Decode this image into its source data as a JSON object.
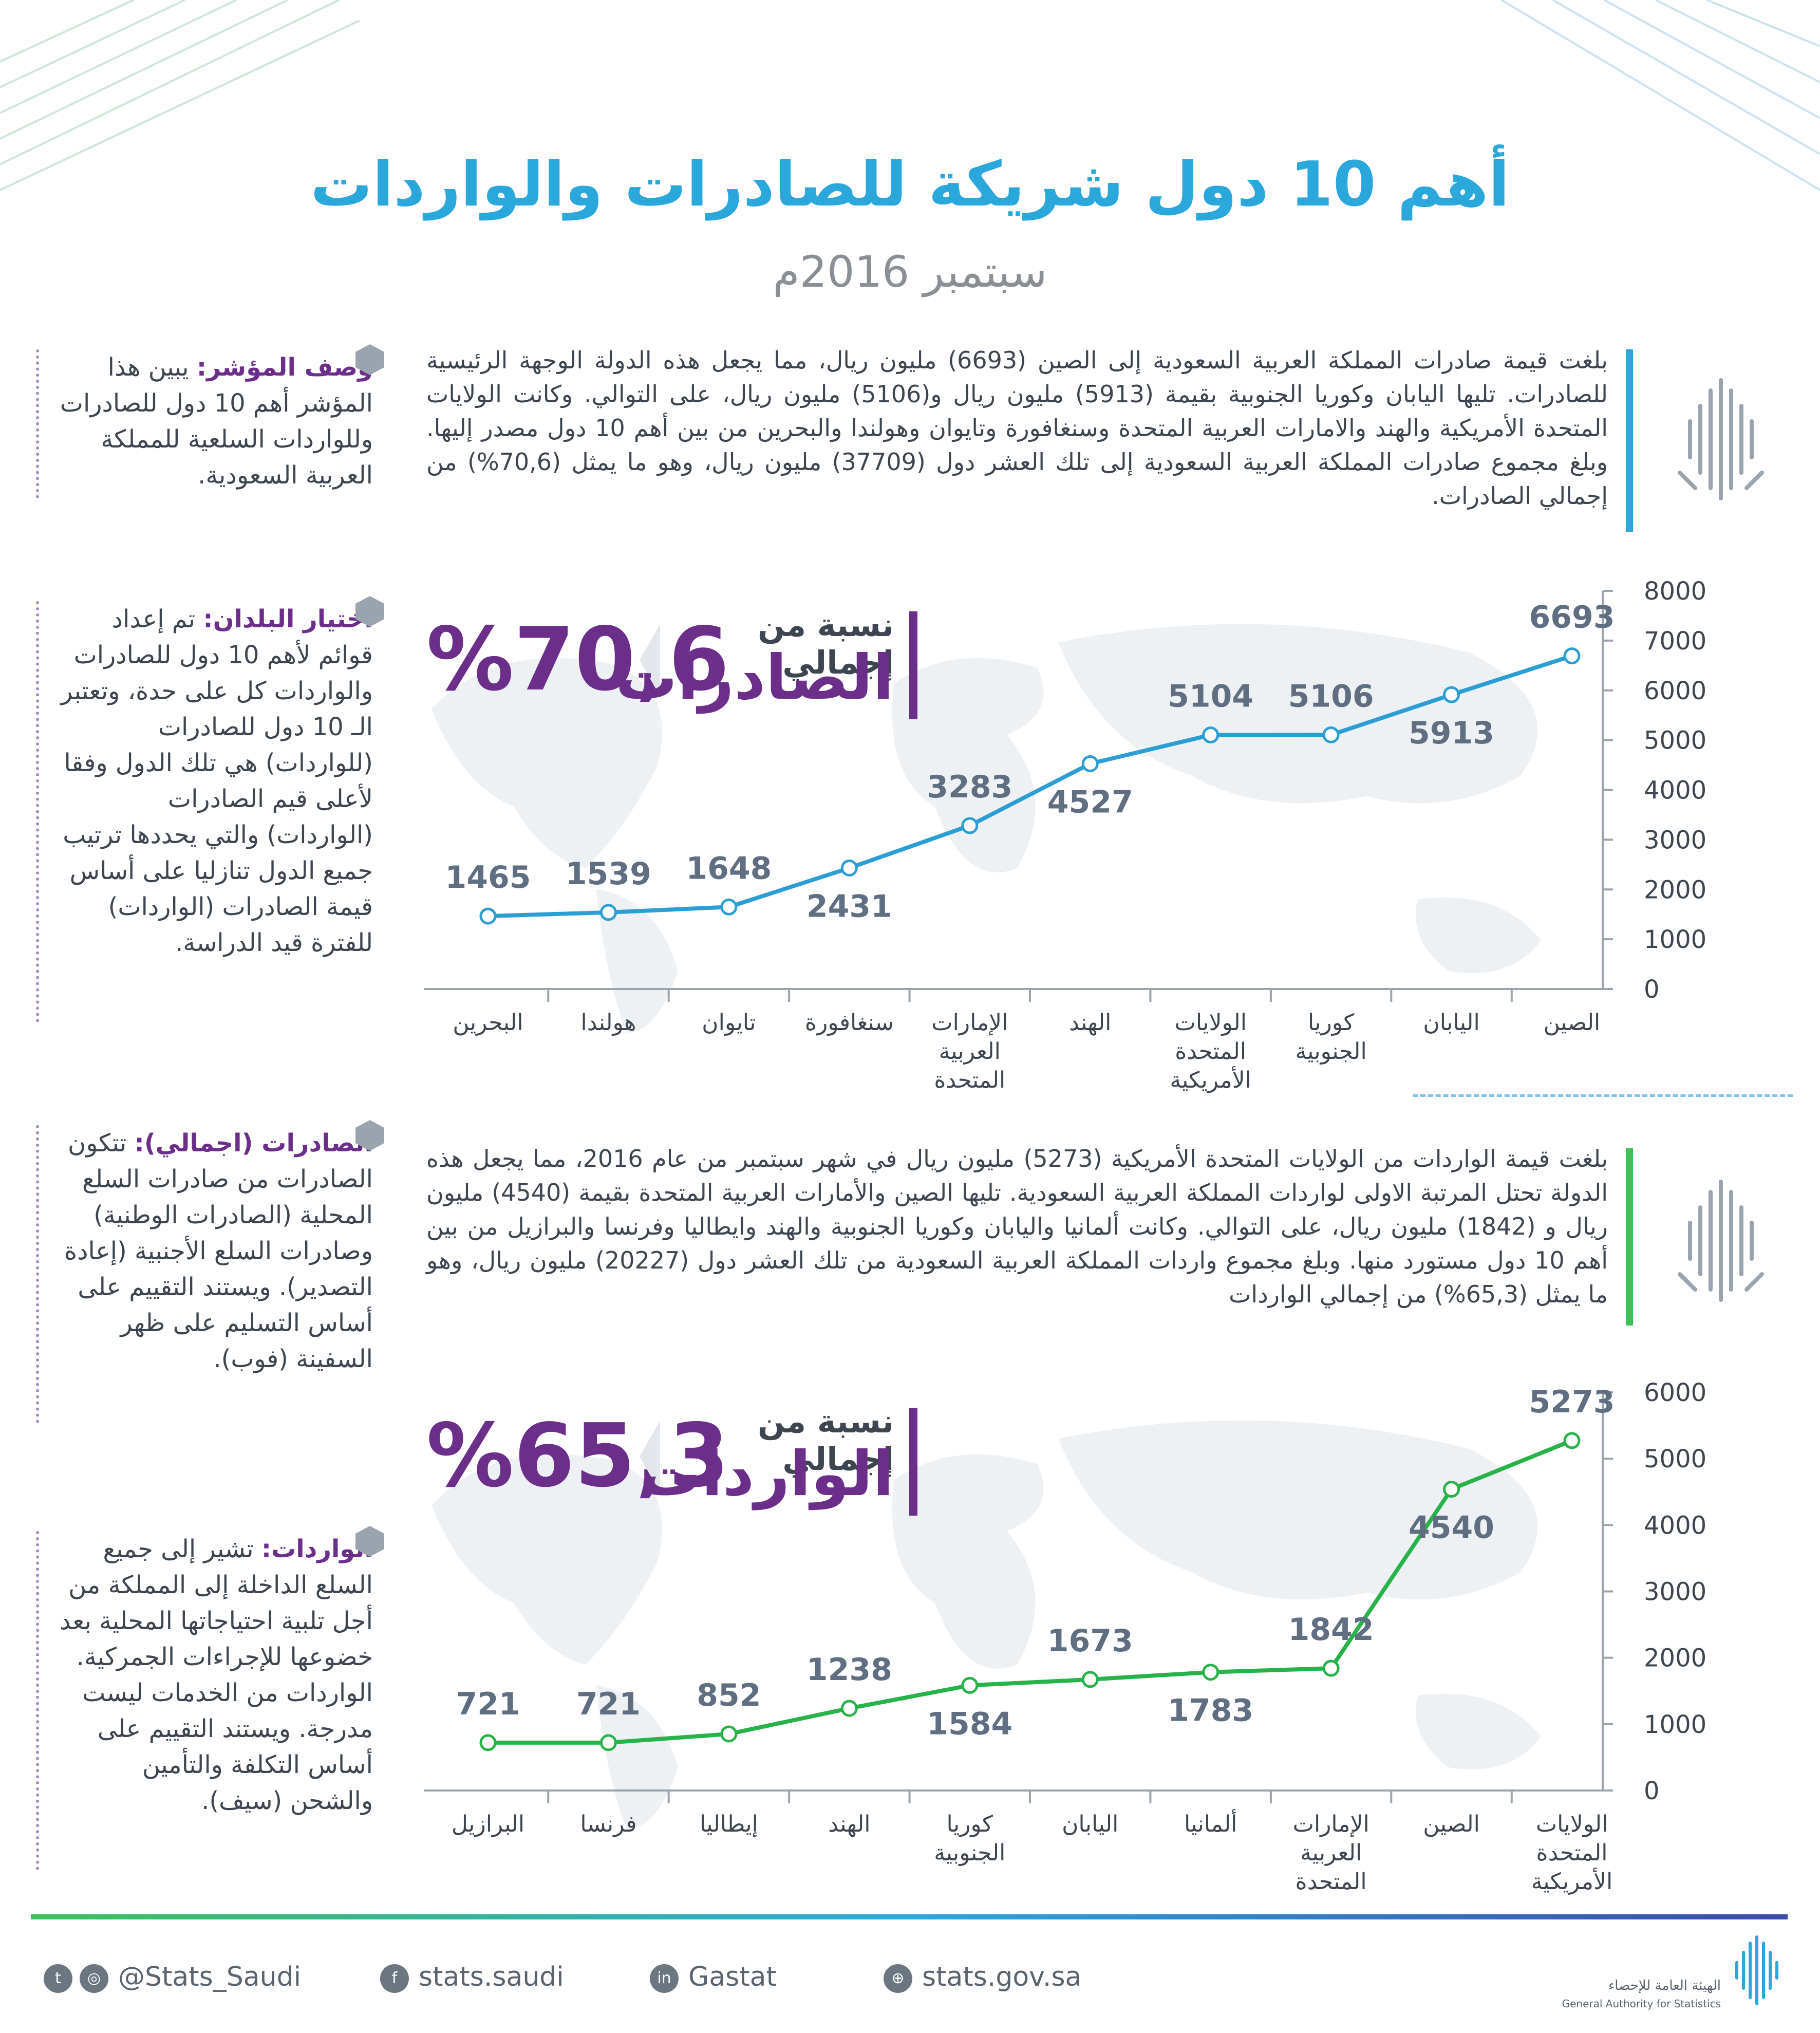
{
  "title": "أهم 10 دول شريكة للصادرات والواردات",
  "subtitle": "سبتمبر 2016م",
  "exports_paragraph": "بلغت قيمة صادرات المملكة العربية السعودية إلى الصين (6693) مليون ريال، مما يجعل هذه الدولة الوجهة الرئيسية للصادرات. تليها اليابان وكوريا الجنوبية بقيمة (5913) مليون ريال و(5106) مليون ريال، على التوالي. وكانت الولايات المتحدة الأمريكية والهند والامارات العربية المتحدة وسنغافورة وتايوان وهولندا والبحرين من بين أهم 10 دول مصدر إليها. وبلغ مجموع صادرات المملكة العربية السعودية إلى تلك العشر دول (37709) مليون ريال، وهو ما يمثل (70,6%) من إجمالي الصادرات.",
  "imports_paragraph": "بلغت قيمة الواردات من الولايات المتحدة الأمريكية (5273) مليون ريال في شهر سبتمبر من عام 2016، مما يجعل هذه الدولة تحتل المرتبة الاولى لواردات المملكة العربية السعودية. تليها الصين والأمارات العربية المتحدة بقيمة (4540) مليون ريال و (1842) مليون ريال، على التوالي. وكانت ألمانيا واليابان وكوريا الجنوبية والهند وايطاليا وفرنسا والبرازيل من بين أهم 10 دول مستورد منها. وبلغ مجموع واردات المملكة العربية السعودية من تلك العشر دول (20227) مليون ريال، وهو ما يمثل (65,3%) من إجمالي الواردات",
  "side_notes": {
    "indicator_title": "وصف المؤشر:",
    "indicator_text": "يبين هذا المؤشر أهم 10 دول للصادرات وللواردات السلعية للمملكة العربية السعودية.",
    "selection_title": "اختيار البلدان:",
    "selection_text": "تم إعداد قوائم لأهم 10 دول للصادرات والواردات كل على حدة، وتعتبر الـ 10 دول للصادرات (للواردات) هي تلك الدول وفقا لأعلى قيم الصادرات (الواردات) والتي يحددها ترتيب جميع الدول تنازليا على أساس قيمة الصادرات (الواردات) للفترة قيد الدراسة.",
    "exports_total_title": "الصادرات (اجمالي):",
    "exports_total_text": "تتكون الصادرات من صادرات السلع المحلية (الصادرات الوطنية) وصادرات السلع الأجنبية (إعادة التصدير). ويستند التقييم على أساس التسليم على ظهر السفينة (فوب).",
    "imports_title": "الواردات:",
    "imports_text": "تشير إلى جميع السلع الداخلة إلى المملكة من أجل تلبية احتياجاتها المحلية بعد خضوعها للإجراءات الجمركية. الواردات من الخدمات ليست مدرجة. ويستند التقييم على أساس التكلفة والتأمين والشحن (سيف)."
  },
  "exports_badge": {
    "small": "نسبة من إجمالي",
    "big": "الصادرات",
    "pct": "%70,6"
  },
  "imports_badge": {
    "small": "نسبة من إجمالي",
    "big": "الواردات",
    "pct": "%65,3"
  },
  "colors": {
    "title": "#2aa8dc",
    "exports_line": "#2b9fd4",
    "imports_line": "#27b34a",
    "accent_purple": "#6b2f8a"
  },
  "chart_data": [
    {
      "type": "line",
      "categories": [
        "البحرين",
        "هولندا",
        "تايوان",
        "سنغافورة",
        "الإمارات العربية المتحدة",
        "الهند",
        "الولايات المتحدة الأمريكية",
        "كوريا الجنوبية",
        "اليابان",
        "الصين"
      ],
      "values": [
        1465,
        1539,
        1648,
        2431,
        3283,
        4527,
        5104,
        5106,
        5913,
        6693
      ],
      "yticks": [
        0,
        1000,
        2000,
        3000,
        4000,
        5000,
        6000,
        7000,
        8000
      ],
      "ylim": [
        0,
        8000
      ],
      "color": "#2b9fd4"
    },
    {
      "type": "line",
      "categories": [
        "البرازيل",
        "فرنسا",
        "إيطاليا",
        "الهند",
        "كوريا الجنوبية",
        "اليابان",
        "ألمانيا",
        "الإمارات العربية المتحدة",
        "الصين",
        "الولايات المتحدة الأمريكية"
      ],
      "values": [
        721,
        721,
        852,
        1238,
        1584,
        1673,
        1783,
        1842,
        4540,
        5273
      ],
      "yticks": [
        0,
        1000,
        2000,
        3000,
        4000,
        5000,
        6000
      ],
      "ylim": [
        0,
        6000
      ],
      "color": "#27b34a"
    }
  ],
  "footer": {
    "twitter": "@Stats_Saudi",
    "facebook": "stats.saudi",
    "linkedin": "Gastat",
    "website": "stats.gov.sa",
    "org_ar": "الهيئة العامة للإحصاء",
    "org_en": "General Authority for Statistics"
  }
}
